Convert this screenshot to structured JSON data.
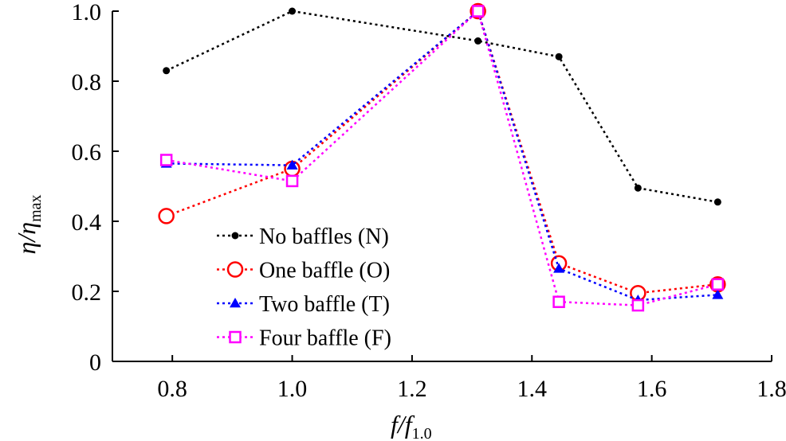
{
  "chart_data": {
    "type": "line",
    "xlabel": {
      "main": "f/f",
      "sub": "1.0"
    },
    "ylabel": {
      "main": "η/η",
      "sub": "max"
    },
    "xlim": [
      0.7,
      1.8
    ],
    "ylim": [
      0,
      1.0
    ],
    "xticks": [
      0.8,
      1.0,
      1.2,
      1.4,
      1.6,
      1.8
    ],
    "yticks": [
      0,
      0.2,
      0.4,
      0.6,
      0.8,
      1.0
    ],
    "xtick_labels": [
      "0.8",
      "1.0",
      "1.2",
      "1.4",
      "1.6",
      "1.8"
    ],
    "ytick_labels": [
      "0",
      "0.2",
      "0.4",
      "0.6",
      "0.8",
      "1.0"
    ],
    "grid": false,
    "legend_position": "bottom-left",
    "series": [
      {
        "name": "No baffles (N)",
        "color": "#000000",
        "marker": "filled-circle",
        "x": [
          0.79,
          1.0,
          1.31,
          1.445,
          1.577,
          1.71
        ],
        "y": [
          0.83,
          1.0,
          0.915,
          0.87,
          0.495,
          0.455
        ]
      },
      {
        "name": "One baffle (O)",
        "color": "#ff0000",
        "marker": "open-circle",
        "x": [
          0.79,
          1.0,
          1.31,
          1.445,
          1.577,
          1.71
        ],
        "y": [
          0.415,
          0.55,
          1.0,
          0.28,
          0.195,
          0.22
        ]
      },
      {
        "name": "Two  baffle (T)",
        "color": "#0000ff",
        "marker": "filled-triangle",
        "x": [
          0.79,
          1.0,
          1.31,
          1.445,
          1.577,
          1.71
        ],
        "y": [
          0.565,
          0.56,
          1.0,
          0.265,
          0.175,
          0.19
        ]
      },
      {
        "name": "Four  baffle (F)",
        "color": "#ff00ff",
        "marker": "open-square",
        "x": [
          0.79,
          1.0,
          1.31,
          1.445,
          1.577,
          1.71
        ],
        "y": [
          0.575,
          0.515,
          1.0,
          0.17,
          0.16,
          0.22
        ]
      }
    ]
  }
}
